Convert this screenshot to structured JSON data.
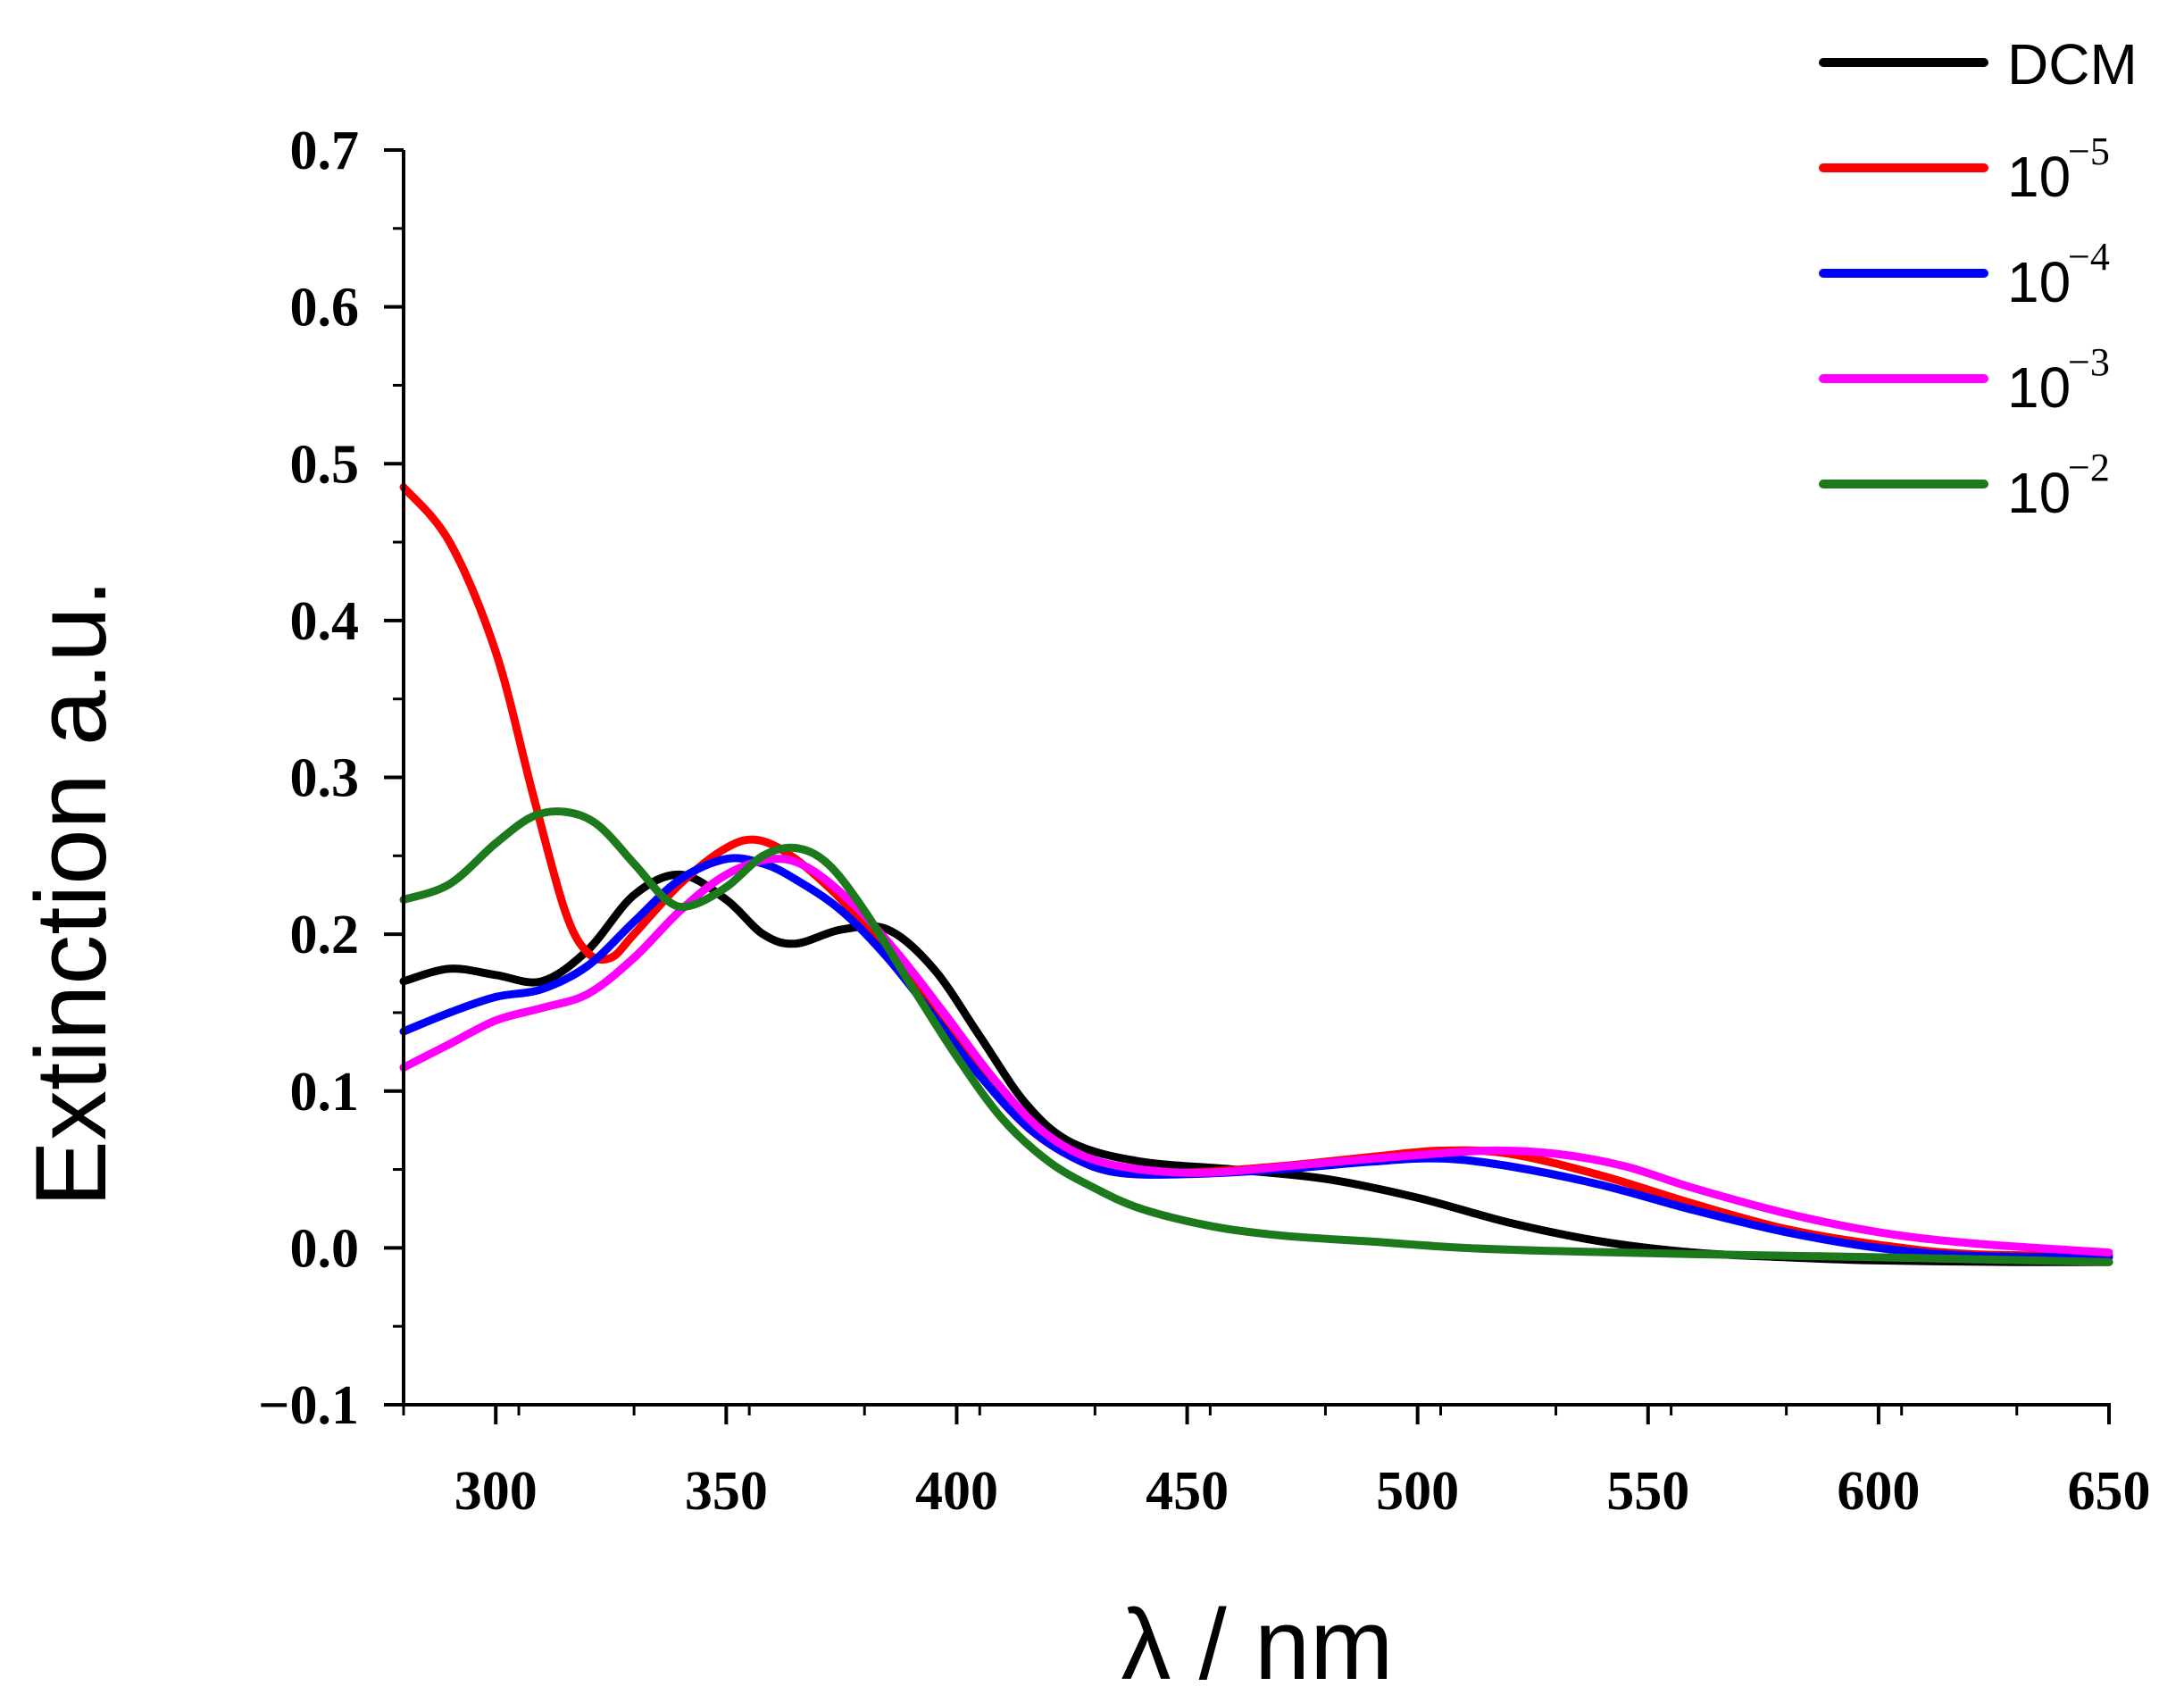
{
  "chart_data": {
    "type": "line",
    "title": "",
    "xlabel": "λ / nm",
    "ylabel": "Extinction a.u.",
    "xlim": [
      280,
      650
    ],
    "ylim": [
      -0.1,
      0.7
    ],
    "xticks": [
      300,
      350,
      400,
      450,
      500,
      550,
      600,
      650
    ],
    "xtick_labels": [
      "300",
      "350",
      "400",
      "450",
      "500",
      "550",
      "600",
      "650"
    ],
    "yticks": [
      -0.1,
      0.0,
      0.1,
      0.2,
      0.3,
      0.4,
      0.5,
      0.6,
      0.7
    ],
    "ytick_labels": [
      "−0.1",
      "0.0",
      "0.1",
      "0.2",
      "0.3",
      "0.4",
      "0.5",
      "0.6",
      "0.7"
    ],
    "grid": false,
    "legend_position": "top-right",
    "series": [
      {
        "name": "DCM",
        "label_base": "DCM",
        "label_exp": "",
        "color": "#000000",
        "points": [
          [
            280,
            0.17
          ],
          [
            290,
            0.178
          ],
          [
            300,
            0.174
          ],
          [
            310,
            0.17
          ],
          [
            320,
            0.19
          ],
          [
            330,
            0.225
          ],
          [
            340,
            0.238
          ],
          [
            350,
            0.222
          ],
          [
            358,
            0.2
          ],
          [
            365,
            0.194
          ],
          [
            375,
            0.203
          ],
          [
            385,
            0.203
          ],
          [
            395,
            0.178
          ],
          [
            405,
            0.135
          ],
          [
            415,
            0.092
          ],
          [
            425,
            0.067
          ],
          [
            440,
            0.055
          ],
          [
            460,
            0.05
          ],
          [
            480,
            0.044
          ],
          [
            500,
            0.032
          ],
          [
            520,
            0.016
          ],
          [
            540,
            0.004
          ],
          [
            560,
            -0.003
          ],
          [
            580,
            -0.006
          ],
          [
            600,
            -0.008
          ],
          [
            630,
            -0.009
          ],
          [
            650,
            -0.009
          ]
        ]
      },
      {
        "name": "10^-5",
        "label_base": "10",
        "label_exp": "−5",
        "color": "#ff0000",
        "points": [
          [
            280,
            0.485
          ],
          [
            290,
            0.45
          ],
          [
            300,
            0.38
          ],
          [
            308,
            0.29
          ],
          [
            315,
            0.215
          ],
          [
            320,
            0.188
          ],
          [
            325,
            0.185
          ],
          [
            330,
            0.2
          ],
          [
            340,
            0.232
          ],
          [
            350,
            0.255
          ],
          [
            357,
            0.26
          ],
          [
            365,
            0.248
          ],
          [
            375,
            0.222
          ],
          [
            385,
            0.19
          ],
          [
            395,
            0.15
          ],
          [
            405,
            0.112
          ],
          [
            415,
            0.078
          ],
          [
            425,
            0.058
          ],
          [
            435,
            0.048
          ],
          [
            450,
            0.048
          ],
          [
            470,
            0.052
          ],
          [
            490,
            0.058
          ],
          [
            505,
            0.062
          ],
          [
            520,
            0.06
          ],
          [
            540,
            0.046
          ],
          [
            560,
            0.028
          ],
          [
            580,
            0.012
          ],
          [
            600,
            0.002
          ],
          [
            620,
            -0.004
          ],
          [
            650,
            -0.005
          ]
        ]
      },
      {
        "name": "10^-4",
        "label_base": "10",
        "label_exp": "−4",
        "color": "#0000ff",
        "points": [
          [
            280,
            0.138
          ],
          [
            290,
            0.15
          ],
          [
            300,
            0.16
          ],
          [
            310,
            0.165
          ],
          [
            320,
            0.18
          ],
          [
            330,
            0.208
          ],
          [
            340,
            0.235
          ],
          [
            350,
            0.248
          ],
          [
            358,
            0.245
          ],
          [
            365,
            0.235
          ],
          [
            375,
            0.215
          ],
          [
            385,
            0.185
          ],
          [
            395,
            0.148
          ],
          [
            405,
            0.11
          ],
          [
            415,
            0.078
          ],
          [
            425,
            0.058
          ],
          [
            435,
            0.048
          ],
          [
            450,
            0.047
          ],
          [
            470,
            0.05
          ],
          [
            490,
            0.055
          ],
          [
            505,
            0.057
          ],
          [
            520,
            0.052
          ],
          [
            540,
            0.04
          ],
          [
            560,
            0.024
          ],
          [
            580,
            0.01
          ],
          [
            600,
            0.0
          ],
          [
            620,
            -0.005
          ],
          [
            650,
            -0.006
          ]
        ]
      },
      {
        "name": "10^-3",
        "label_base": "10",
        "label_exp": "−3",
        "color": "#ff00ff",
        "points": [
          [
            280,
            0.115
          ],
          [
            290,
            0.13
          ],
          [
            300,
            0.145
          ],
          [
            310,
            0.153
          ],
          [
            320,
            0.162
          ],
          [
            330,
            0.185
          ],
          [
            340,
            0.215
          ],
          [
            350,
            0.238
          ],
          [
            360,
            0.248
          ],
          [
            368,
            0.242
          ],
          [
            378,
            0.218
          ],
          [
            388,
            0.185
          ],
          [
            398,
            0.147
          ],
          [
            408,
            0.108
          ],
          [
            418,
            0.076
          ],
          [
            428,
            0.058
          ],
          [
            440,
            0.05
          ],
          [
            455,
            0.048
          ],
          [
            475,
            0.053
          ],
          [
            495,
            0.058
          ],
          [
            515,
            0.062
          ],
          [
            530,
            0.06
          ],
          [
            545,
            0.052
          ],
          [
            560,
            0.038
          ],
          [
            580,
            0.022
          ],
          [
            600,
            0.01
          ],
          [
            620,
            0.003
          ],
          [
            650,
            -0.003
          ]
        ]
      },
      {
        "name": "10^-2",
        "label_base": "10",
        "label_exp": "−2",
        "color": "#1c7a1c",
        "points": [
          [
            280,
            0.222
          ],
          [
            290,
            0.232
          ],
          [
            300,
            0.258
          ],
          [
            308,
            0.275
          ],
          [
            315,
            0.278
          ],
          [
            322,
            0.27
          ],
          [
            330,
            0.245
          ],
          [
            337,
            0.222
          ],
          [
            342,
            0.218
          ],
          [
            350,
            0.23
          ],
          [
            358,
            0.25
          ],
          [
            365,
            0.255
          ],
          [
            372,
            0.245
          ],
          [
            380,
            0.215
          ],
          [
            390,
            0.168
          ],
          [
            400,
            0.122
          ],
          [
            410,
            0.082
          ],
          [
            420,
            0.055
          ],
          [
            430,
            0.038
          ],
          [
            440,
            0.025
          ],
          [
            455,
            0.014
          ],
          [
            470,
            0.008
          ],
          [
            490,
            0.004
          ],
          [
            510,
            0.0
          ],
          [
            530,
            -0.002
          ],
          [
            560,
            -0.004
          ],
          [
            600,
            -0.006
          ],
          [
            650,
            -0.009
          ]
        ]
      }
    ]
  }
}
